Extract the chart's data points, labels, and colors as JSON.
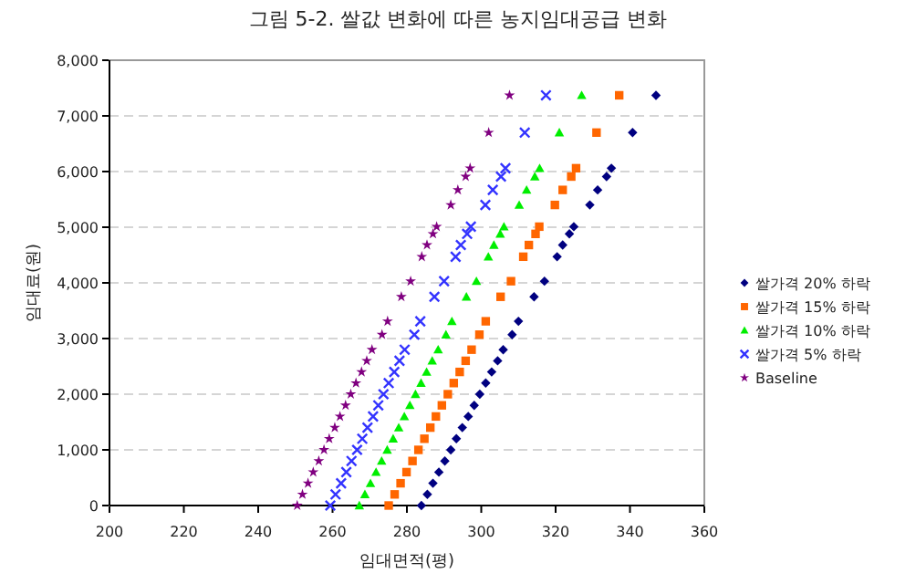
{
  "chart_data": {
    "type": "scatter",
    "title": "그림 5-2. 쌀값 변화에 따른 농지임대공급 변화",
    "xlabel": "임대면적(평)",
    "ylabel": "임대료(원)",
    "xlim": [
      200,
      360
    ],
    "xticks": [
      200,
      220,
      240,
      260,
      280,
      300,
      320,
      340,
      360
    ],
    "ylim": [
      0,
      8000
    ],
    "yticks": [
      0,
      {
        "value": 1000,
        "label": "1,000"
      },
      {
        "value": 2000,
        "label": "2,000"
      },
      {
        "value": 3000,
        "label": "3,000"
      },
      {
        "value": 4000,
        "label": "4,000"
      },
      {
        "value": 5000,
        "label": "5,000"
      },
      {
        "value": 6000,
        "label": "6,000"
      },
      {
        "value": 7000,
        "label": "7,000"
      },
      {
        "value": 8000,
        "label": "8,000"
      }
    ],
    "grid": "y",
    "legend": "right",
    "series": [
      {
        "name": "쌀가격 20% 하락",
        "color": "#000080",
        "marker": "diamond",
        "x": [
          283.9,
          285.5,
          287.0,
          288.6,
          290.2,
          291.8,
          293.3,
          294.9,
          296.5,
          298.1,
          299.6,
          301.2,
          302.8,
          304.4,
          305.9,
          308.3,
          310.0,
          314.2,
          317.0,
          320.4,
          321.9,
          323.7,
          324.9,
          329.2,
          331.3,
          333.7,
          335.0,
          340.7,
          347.0
        ],
        "values": [
          0,
          200,
          400,
          600,
          800,
          1000,
          1200,
          1400,
          1600,
          1800,
          2000,
          2200,
          2400,
          2600,
          2800,
          3070,
          3310,
          3750,
          4030,
          4470,
          4680,
          4880,
          5010,
          5400,
          5670,
          5910,
          6060,
          6700,
          7370
        ]
      },
      {
        "name": "쌀가격 15% 하락",
        "color": "#ff6600",
        "marker": "square",
        "x": [
          275.1,
          276.7,
          278.3,
          279.9,
          281.5,
          283.1,
          284.7,
          286.3,
          287.8,
          289.4,
          291.0,
          292.6,
          294.2,
          295.8,
          297.4,
          299.5,
          301.2,
          305.2,
          308.0,
          311.3,
          312.8,
          314.6,
          315.6,
          319.8,
          321.9,
          324.2,
          325.5,
          331.0,
          337.1
        ],
        "values": [
          0,
          200,
          400,
          600,
          800,
          1000,
          1200,
          1400,
          1600,
          1800,
          2000,
          2200,
          2400,
          2600,
          2800,
          3070,
          3310,
          3750,
          4030,
          4470,
          4680,
          4880,
          5010,
          5400,
          5670,
          5910,
          6060,
          6700,
          7370
        ]
      },
      {
        "name": "쌀가격 10% 하락",
        "color": "#00ee00",
        "marker": "triangle",
        "x": [
          267.2,
          268.7,
          270.2,
          271.7,
          273.2,
          274.7,
          276.3,
          277.8,
          279.3,
          280.8,
          282.3,
          283.8,
          285.3,
          286.8,
          288.4,
          290.5,
          292.1,
          296.0,
          298.7,
          301.9,
          303.4,
          305.1,
          306.1,
          310.2,
          312.2,
          314.4,
          315.7,
          321.0,
          327.0
        ],
        "values": [
          0,
          200,
          400,
          600,
          800,
          1000,
          1200,
          1400,
          1600,
          1800,
          2000,
          2200,
          2400,
          2600,
          2800,
          3070,
          3310,
          3750,
          4030,
          4470,
          4680,
          4880,
          5010,
          5400,
          5670,
          5910,
          6060,
          6700,
          7370
        ]
      },
      {
        "name": "쌀가격 5% 하락",
        "color": "#3333ff",
        "marker": "cross",
        "x": [
          259.4,
          260.8,
          262.3,
          263.7,
          265.1,
          266.6,
          268.0,
          269.4,
          270.9,
          272.3,
          273.7,
          275.1,
          276.6,
          278.0,
          279.4,
          282.0,
          283.6,
          287.4,
          290.0,
          293.1,
          294.5,
          296.2,
          297.2,
          301.1,
          303.1,
          305.3,
          306.5,
          311.7,
          317.4
        ],
        "values": [
          0,
          200,
          400,
          600,
          800,
          1000,
          1200,
          1400,
          1600,
          1800,
          2000,
          2200,
          2400,
          2600,
          2800,
          3070,
          3310,
          3750,
          4030,
          4470,
          4680,
          4880,
          5010,
          5400,
          5670,
          5910,
          6060,
          6700,
          7370
        ]
      },
      {
        "name": "Baseline",
        "color": "#800080",
        "marker": "star",
        "x": [
          250.5,
          251.9,
          253.4,
          254.8,
          256.3,
          257.7,
          259.1,
          260.6,
          262.0,
          263.5,
          264.9,
          266.3,
          267.8,
          269.2,
          270.6,
          273.3,
          274.8,
          278.5,
          281.0,
          284.0,
          285.4,
          287.0,
          288.0,
          291.8,
          293.7,
          295.8,
          297.0,
          302.0,
          307.6
        ],
        "values": [
          0,
          200,
          400,
          600,
          800,
          1000,
          1200,
          1400,
          1600,
          1800,
          2000,
          2200,
          2400,
          2600,
          2800,
          3070,
          3310,
          3750,
          4030,
          4470,
          4680,
          4880,
          5010,
          5400,
          5670,
          5910,
          6060,
          6700,
          7370
        ]
      }
    ]
  }
}
